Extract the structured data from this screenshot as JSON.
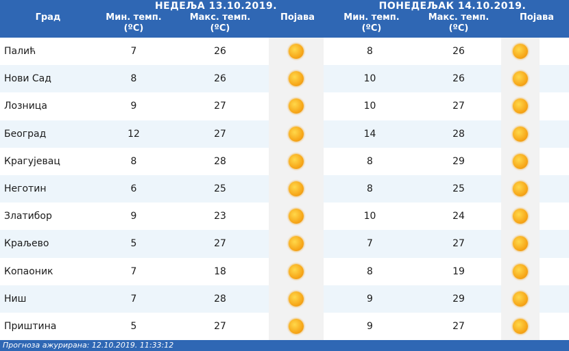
{
  "headers": {
    "city": "Град",
    "min_temp": "Мин. темп.",
    "max_temp": "Макс. темп.",
    "unit": "(ºC)",
    "phenomenon": "Појава"
  },
  "days": [
    {
      "title": "НЕДЕЉА  13.10.2019."
    },
    {
      "title": "ПОНЕДЕЉАК  14.10.2019."
    }
  ],
  "icon": "sun-icon",
  "rows": [
    {
      "city": "Палић",
      "d1_min": "7",
      "d1_max": "26",
      "d2_min": "8",
      "d2_max": "26"
    },
    {
      "city": "Нови Сад",
      "d1_min": "8",
      "d1_max": "26",
      "d2_min": "10",
      "d2_max": "26"
    },
    {
      "city": "Лозница",
      "d1_min": "9",
      "d1_max": "27",
      "d2_min": "10",
      "d2_max": "27"
    },
    {
      "city": "Београд",
      "d1_min": "12",
      "d1_max": "27",
      "d2_min": "14",
      "d2_max": "28"
    },
    {
      "city": "Крагујевац",
      "d1_min": "8",
      "d1_max": "28",
      "d2_min": "8",
      "d2_max": "29"
    },
    {
      "city": "Неготин",
      "d1_min": "6",
      "d1_max": "25",
      "d2_min": "8",
      "d2_max": "25"
    },
    {
      "city": "Златибор",
      "d1_min": "9",
      "d1_max": "23",
      "d2_min": "10",
      "d2_max": "24"
    },
    {
      "city": "Краљево",
      "d1_min": "5",
      "d1_max": "27",
      "d2_min": "7",
      "d2_max": "27"
    },
    {
      "city": "Копаоник",
      "d1_min": "7",
      "d1_max": "18",
      "d2_min": "8",
      "d2_max": "19"
    },
    {
      "city": "Ниш",
      "d1_min": "7",
      "d1_max": "28",
      "d2_min": "9",
      "d2_max": "29"
    },
    {
      "city": "Приштина",
      "d1_min": "5",
      "d1_max": "27",
      "d2_min": "9",
      "d2_max": "27"
    }
  ],
  "footer": {
    "text": "Прогноза ажурирана:  12.10.2019. 11:33:12"
  }
}
